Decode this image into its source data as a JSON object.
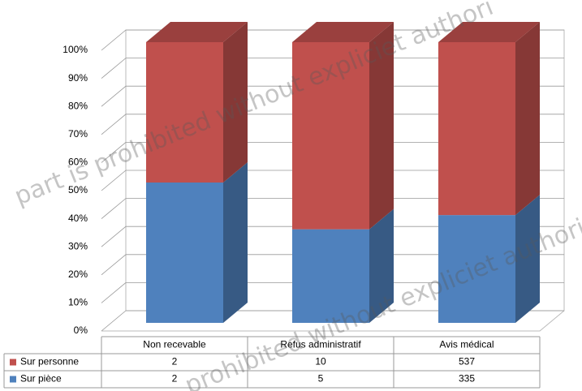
{
  "chart_data": {
    "type": "stacked-bar-3d-percent",
    "categories": [
      "Non recevable",
      "Refus administratif",
      "Avis médical"
    ],
    "series": [
      {
        "name": "Sur pièce",
        "color": "#4f81bd",
        "values": [
          2,
          5,
          335
        ]
      },
      {
        "name": "Sur personne",
        "color": "#c0504d",
        "values": [
          2,
          10,
          537
        ]
      }
    ],
    "ylim": [
      0,
      100
    ],
    "yticks": [
      {
        "value": 0,
        "label": "0%"
      },
      {
        "value": 10,
        "label": "10%"
      },
      {
        "value": 20,
        "label": "20%"
      },
      {
        "value": 30,
        "label": "30%"
      },
      {
        "value": 40,
        "label": "40%"
      },
      {
        "value": 50,
        "label": "50%"
      },
      {
        "value": 60,
        "label": "60%"
      },
      {
        "value": 70,
        "label": "70%"
      },
      {
        "value": 80,
        "label": "80%"
      },
      {
        "value": 90,
        "label": "90%"
      },
      {
        "value": 100,
        "label": "100%"
      }
    ],
    "grid": true,
    "watermark": [
      "part is prohibited without expliciet authori",
      "prohibited without expliciet authori"
    ]
  }
}
